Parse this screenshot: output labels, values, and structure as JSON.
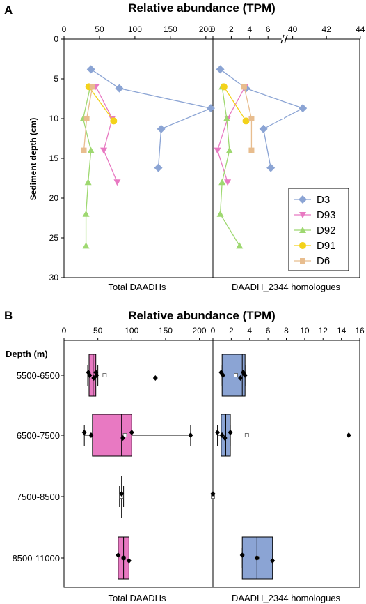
{
  "colors": {
    "D3": "#8ba4d4",
    "D93": "#e879c2",
    "D92": "#9ed870",
    "D91": "#f3d21a",
    "D6": "#e8bd8e",
    "box_total": "#e879c2",
    "box_homologue": "#8ba4d4"
  },
  "chart_data": [
    {
      "type": "line",
      "panel_label": "A",
      "title": "Relative abundance (TPM)",
      "ylabel": "Sediment depth (cm)",
      "y_ticks": [
        "0",
        "5",
        "10",
        "15",
        "20",
        "25",
        "30"
      ],
      "ylim": [
        0,
        30
      ],
      "y_inverted": true,
      "legend_position": "bottom-right",
      "legend": [
        "D3",
        "D93",
        "D92",
        "D91",
        "D6"
      ],
      "subplots": [
        {
          "xlabel": "Total DAADHs",
          "xlim": [
            0,
            210
          ],
          "x_ticks": [
            "0",
            "50",
            "100",
            "150",
            "200"
          ],
          "series": [
            {
              "name": "D3",
              "marker": "diamond",
              "points": [
                [
                  38,
                  3.8
                ],
                [
                  78,
                  6.2
                ],
                [
                  207,
                  8.7
                ],
                [
                  137,
                  11.3
                ],
                [
                  133,
                  16.2
                ]
              ]
            },
            {
              "name": "D93",
              "marker": "triangle-down",
              "points": [
                [
                  45,
                  6
                ],
                [
                  68,
                  10
                ],
                [
                  56,
                  14
                ],
                [
                  75,
                  18
                ]
              ]
            },
            {
              "name": "D92",
              "marker": "triangle-up",
              "points": [
                [
                  37,
                  6
                ],
                [
                  27,
                  10
                ],
                [
                  38,
                  14
                ],
                [
                  34,
                  18
                ],
                [
                  31,
                  22
                ],
                [
                  31,
                  26
                ]
              ]
            },
            {
              "name": "D91",
              "marker": "circle",
              "points": [
                [
                  35,
                  6
                ],
                [
                  70,
                  10.3
                ]
              ]
            },
            {
              "name": "D6",
              "marker": "square",
              "points": [
                [
                  40,
                  6
                ],
                [
                  32,
                  10
                ],
                [
                  28,
                  14
                ]
              ]
            }
          ]
        },
        {
          "xlabel": "DAADH_2344 homologues",
          "x_broken": true,
          "x_ticks": [
            "0",
            "2",
            "4",
            "6",
            "40",
            "42",
            "44"
          ],
          "series": [
            {
              "name": "D3",
              "marker": "diamond",
              "points": [
                [
                  0.8,
                  3.8
                ],
                [
                  3.6,
                  6.2
                ],
                [
                  40.6,
                  8.7
                ],
                [
                  5.5,
                  11.3
                ],
                [
                  6.3,
                  16.2
                ]
              ]
            },
            {
              "name": "D93",
              "marker": "triangle-down",
              "points": [
                [
                  3.5,
                  6
                ],
                [
                  1.6,
                  10
                ],
                [
                  0.5,
                  14
                ],
                [
                  1.6,
                  18
                ]
              ]
            },
            {
              "name": "D92",
              "marker": "triangle-up",
              "points": [
                [
                  1.0,
                  6
                ],
                [
                  1.5,
                  10
                ],
                [
                  1.8,
                  14
                ],
                [
                  1.0,
                  18
                ],
                [
                  0.8,
                  22
                ],
                [
                  2.9,
                  26
                ]
              ]
            },
            {
              "name": "D91",
              "marker": "circle",
              "points": [
                [
                  1.2,
                  6
                ],
                [
                  3.6,
                  10.3
                ]
              ]
            },
            {
              "name": "D6",
              "marker": "square",
              "points": [
                [
                  3.4,
                  6
                ],
                [
                  4.2,
                  10
                ],
                [
                  4.2,
                  14
                ]
              ]
            }
          ]
        }
      ]
    },
    {
      "type": "box",
      "panel_label": "B",
      "title": "Relative abundance (TPM)",
      "ylabel": "Depth (m)",
      "categories": [
        "5500-6500",
        "6500-7500",
        "7500-8500",
        "8500-11000"
      ],
      "subplots": [
        {
          "xlabel": "Total DAADHs",
          "xlim": [
            0,
            220
          ],
          "x_ticks": [
            "0",
            "50",
            "100",
            "150",
            "200"
          ],
          "boxes": [
            {
              "category": "5500-6500",
              "q1": 37,
              "median": 43,
              "q3": 47,
              "whisker_low": 35,
              "whisker_high": 50,
              "mean": 60,
              "points": [
                36,
                38,
                44,
                47,
                48,
                135
              ]
            },
            {
              "category": "6500-7500",
              "q1": 42,
              "median": 85,
              "q3": 100,
              "whisker_low": 30,
              "whisker_high": 187,
              "mean": 90,
              "points": [
                30,
                40,
                87,
                100,
                187
              ]
            },
            {
              "category": "7500-8500",
              "q1": 85,
              "median": 85,
              "q3": 85,
              "whisker_low": 82,
              "whisker_high": 88,
              "mean": 85,
              "points": [
                85
              ]
            },
            {
              "category": "8500-11000",
              "q1": 80,
              "median": 88,
              "q3": 96,
              "whisker_low": 80,
              "whisker_high": 96,
              "mean": 88,
              "points": [
                80,
                88,
                96
              ]
            }
          ]
        },
        {
          "xlabel": "DAADH_2344 homologues",
          "xlim": [
            0,
            16
          ],
          "x_ticks": [
            "0",
            "2",
            "4",
            "6",
            "8",
            "10",
            "12",
            "14",
            "16"
          ],
          "boxes": [
            {
              "category": "5500-6500",
              "q1": 1.0,
              "median": 3.2,
              "q3": 3.5,
              "whisker_low": 1.0,
              "whisker_high": 3.5,
              "mean": 2.5,
              "points": [
                0.9,
                1.1,
                3.0,
                3.3,
                3.5
              ]
            },
            {
              "category": "6500-7500",
              "q1": 0.9,
              "median": 1.4,
              "q3": 1.9,
              "whisker_low": 0.5,
              "whisker_high": 1.9,
              "mean": 3.7,
              "points": [
                0.5,
                1.0,
                1.3,
                1.9,
                14.8
              ]
            },
            {
              "category": "7500-8500",
              "q1": 0,
              "median": 0,
              "q3": 0,
              "whisker_low": 0,
              "whisker_high": 0,
              "mean": 0,
              "points": [
                0
              ]
            },
            {
              "category": "8500-11000",
              "q1": 3.2,
              "median": 4.8,
              "q3": 6.5,
              "whisker_low": 3.2,
              "whisker_high": 6.5,
              "mean": 4.8,
              "points": [
                3.2,
                4.8,
                6.5
              ]
            }
          ]
        }
      ]
    }
  ]
}
